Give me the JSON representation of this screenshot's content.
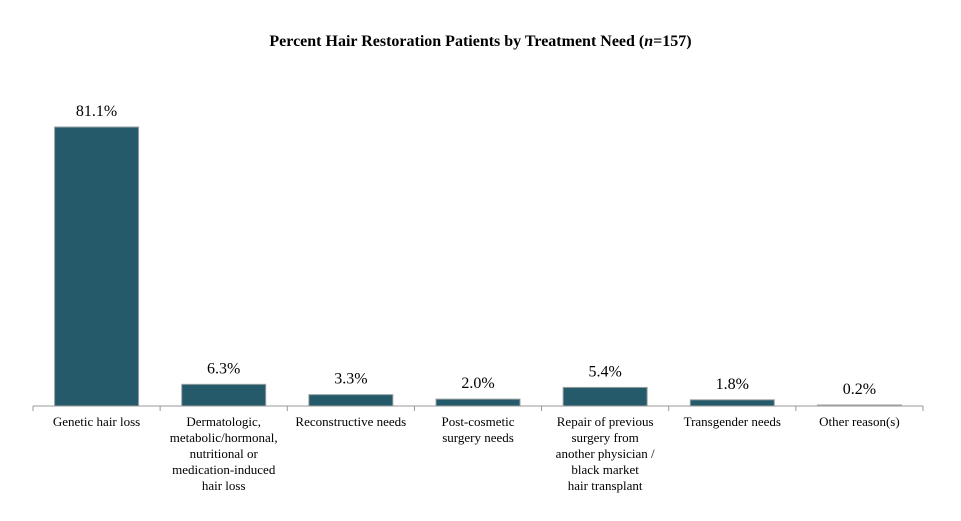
{
  "chart_data": {
    "type": "bar",
    "title_prefix": "Percent Hair Restoration Patients by Treatment Need (",
    "title_n": "n",
    "title_suffix": "=157)",
    "categories": [
      "Genetic hair loss",
      "Dermatologic, metabolic/hormonal, nutritional or medication-induced hair loss",
      "Reconstructive needs",
      "Post-cosmetic surgery needs",
      "Repair of previous surgery from another physician / black market hair transplant",
      "Transgender needs",
      "Other reason(s)"
    ],
    "category_lines": [
      [
        "Genetic hair loss"
      ],
      [
        "Dermatologic,",
        "metabolic/hormonal,",
        "nutritional or",
        "medication-induced",
        "hair loss"
      ],
      [
        "Reconstructive needs"
      ],
      [
        "Post-cosmetic",
        "surgery needs"
      ],
      [
        "Repair of previous",
        "surgery from",
        "another physician /",
        "black market",
        "hair transplant"
      ],
      [
        "Transgender needs"
      ],
      [
        "Other reason(s)"
      ]
    ],
    "values": [
      81.1,
      6.3,
      3.3,
      2.0,
      5.4,
      1.8,
      0.2
    ],
    "value_labels": [
      "81.1%",
      "6.3%",
      "3.3%",
      "2.0%",
      "5.4%",
      "1.8%",
      "0.2%"
    ],
    "ylim": [
      0,
      81.1
    ],
    "grid": false,
    "legend": "none",
    "bar_color": "#245a6a",
    "bar_border": "#9aa0a3"
  }
}
